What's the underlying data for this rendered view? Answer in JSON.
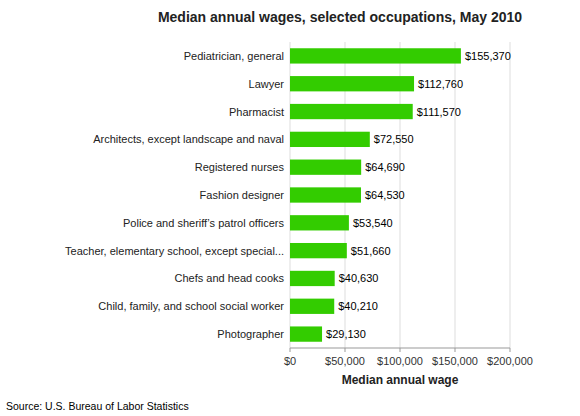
{
  "chart_data": {
    "type": "bar",
    "orientation": "horizontal",
    "title": "Median annual wages, selected occupations, May 2010",
    "categories": [
      "Photographer",
      "Child, family, and school social worker",
      "Chefs and head cooks",
      "Teacher, elementary school, except special...",
      "Police and sheriff’s patrol officers",
      "Fashion designer",
      "Registered nurses",
      "Architects, except landscape and naval",
      "Pharmacist",
      "Lawyer",
      "Pediatrician, general"
    ],
    "values": [
      29130,
      40210,
      40630,
      51660,
      53540,
      64530,
      64690,
      72550,
      111570,
      112760,
      155370
    ],
    "value_labels": [
      "$29,130",
      "$40,210",
      "$40,630",
      "$51,660",
      "$53,540",
      "$64,530",
      "$64,690",
      "$72,550",
      "$111,570",
      "$112,760",
      "$155,370"
    ],
    "color": "#33cc00",
    "xlabel": "Median annual wage",
    "xlim": [
      0,
      200000
    ],
    "xticks": [
      {
        "value": 0,
        "label": "$0"
      },
      {
        "value": 50000,
        "label": "$50,000"
      },
      {
        "value": 100000,
        "label": "$100,000"
      },
      {
        "value": 150000,
        "label": "$150,000"
      },
      {
        "value": 200000,
        "label": "$200,000"
      }
    ],
    "grid": true,
    "annotations": [
      "Source: U.S. Bureau of Labor Statistics"
    ]
  }
}
